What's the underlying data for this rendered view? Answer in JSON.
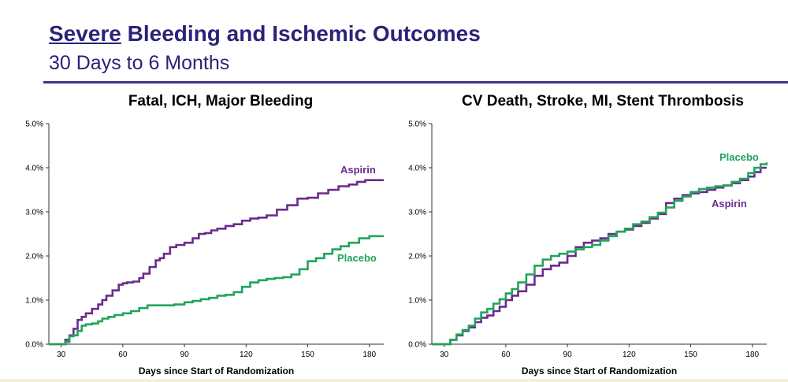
{
  "header": {
    "title_underlined": "Severe",
    "title_rest": " Bleeding and Ischemic Outcomes",
    "subtitle": "30 Days to 6 Months"
  },
  "colors": {
    "aspirin": "#6b2a8c",
    "placebo": "#22a35a",
    "title": "#2a2377"
  },
  "chart_data": [
    {
      "type": "line",
      "title": "Fatal, ICH, Major Bleeding",
      "xlabel": "Days since Start of Randomization",
      "ylabel": "",
      "xlim": [
        24,
        187
      ],
      "ylim": [
        0,
        5.0
      ],
      "xticks": [
        30,
        60,
        90,
        120,
        150,
        180
      ],
      "yticks": [
        "0.0%",
        "1.0%",
        "2.0%",
        "3.0%",
        "4.0%",
        "5.0%"
      ],
      "series": [
        {
          "name": "Aspirin",
          "color": "aspirin",
          "x": [
            24,
            30,
            32,
            34,
            36,
            38,
            40,
            42,
            45,
            48,
            50,
            52,
            55,
            58,
            60,
            62,
            65,
            68,
            70,
            73,
            76,
            78,
            80,
            83,
            86,
            90,
            94,
            97,
            100,
            103,
            106,
            110,
            114,
            118,
            122,
            126,
            130,
            135,
            140,
            145,
            150,
            155,
            160,
            165,
            170,
            174,
            178,
            182,
            187
          ],
          "y": [
            0.0,
            0.0,
            0.1,
            0.2,
            0.35,
            0.55,
            0.62,
            0.7,
            0.8,
            0.9,
            1.0,
            1.1,
            1.22,
            1.35,
            1.38,
            1.4,
            1.42,
            1.5,
            1.6,
            1.75,
            1.9,
            1.95,
            2.05,
            2.2,
            2.25,
            2.3,
            2.4,
            2.5,
            2.52,
            2.58,
            2.62,
            2.68,
            2.72,
            2.8,
            2.85,
            2.87,
            2.92,
            3.05,
            3.15,
            3.3,
            3.32,
            3.42,
            3.5,
            3.58,
            3.62,
            3.68,
            3.72,
            3.72,
            3.72
          ]
        },
        {
          "name": "Placebo",
          "color": "placebo",
          "x": [
            24,
            30,
            32,
            34,
            36,
            38,
            40,
            42,
            45,
            48,
            50,
            53,
            56,
            60,
            64,
            68,
            72,
            76,
            80,
            85,
            90,
            94,
            98,
            102,
            106,
            110,
            114,
            118,
            122,
            126,
            130,
            134,
            138,
            142,
            146,
            150,
            154,
            158,
            162,
            166,
            170,
            175,
            180,
            187
          ],
          "y": [
            0.0,
            0.0,
            0.05,
            0.18,
            0.2,
            0.3,
            0.42,
            0.45,
            0.47,
            0.52,
            0.58,
            0.62,
            0.66,
            0.7,
            0.75,
            0.82,
            0.88,
            0.88,
            0.88,
            0.9,
            0.95,
            0.98,
            1.02,
            1.05,
            1.1,
            1.12,
            1.18,
            1.3,
            1.4,
            1.45,
            1.48,
            1.5,
            1.52,
            1.58,
            1.7,
            1.88,
            1.95,
            2.05,
            2.15,
            2.22,
            2.3,
            2.4,
            2.45,
            2.45
          ]
        }
      ]
    },
    {
      "type": "line",
      "title": "CV Death, Stroke, MI, Stent Thrombosis",
      "xlabel": "Days since Start of Randomization",
      "ylabel": "",
      "xlim": [
        24,
        187
      ],
      "ylim": [
        0,
        5.0
      ],
      "xticks": [
        30,
        60,
        90,
        120,
        150,
        180
      ],
      "yticks": [
        "0.0%",
        "1.0%",
        "2.0%",
        "3.0%",
        "4.0%",
        "5.0%"
      ],
      "series": [
        {
          "name": "Aspirin",
          "color": "aspirin",
          "x": [
            24,
            30,
            33,
            36,
            39,
            42,
            45,
            48,
            51,
            54,
            57,
            60,
            63,
            66,
            70,
            74,
            78,
            82,
            86,
            90,
            94,
            98,
            102,
            106,
            110,
            114,
            118,
            122,
            126,
            130,
            134,
            138,
            142,
            146,
            150,
            154,
            158,
            162,
            166,
            170,
            174,
            178,
            181,
            184,
            187
          ],
          "y": [
            0.0,
            0.0,
            0.1,
            0.2,
            0.3,
            0.38,
            0.5,
            0.6,
            0.65,
            0.75,
            0.85,
            1.0,
            1.1,
            1.2,
            1.35,
            1.55,
            1.7,
            1.78,
            1.85,
            2.0,
            2.2,
            2.3,
            2.35,
            2.4,
            2.5,
            2.55,
            2.6,
            2.68,
            2.75,
            2.85,
            2.95,
            3.2,
            3.3,
            3.38,
            3.42,
            3.45,
            3.5,
            3.55,
            3.6,
            3.65,
            3.72,
            3.8,
            3.9,
            4.0,
            4.0
          ]
        },
        {
          "name": "Placebo",
          "color": "placebo",
          "x": [
            24,
            30,
            33,
            36,
            39,
            42,
            45,
            48,
            51,
            54,
            57,
            60,
            63,
            66,
            70,
            74,
            78,
            82,
            86,
            90,
            94,
            98,
            102,
            106,
            110,
            114,
            118,
            122,
            126,
            130,
            134,
            138,
            142,
            146,
            150,
            154,
            158,
            162,
            166,
            170,
            174,
            178,
            181,
            184,
            187
          ],
          "y": [
            0.0,
            0.0,
            0.1,
            0.22,
            0.32,
            0.42,
            0.58,
            0.72,
            0.8,
            0.92,
            1.02,
            1.15,
            1.25,
            1.4,
            1.58,
            1.78,
            1.92,
            2.0,
            2.05,
            2.1,
            2.15,
            2.2,
            2.25,
            2.35,
            2.45,
            2.55,
            2.62,
            2.72,
            2.78,
            2.88,
            2.98,
            3.1,
            3.25,
            3.35,
            3.45,
            3.52,
            3.55,
            3.58,
            3.6,
            3.68,
            3.75,
            3.88,
            4.0,
            4.08,
            4.12
          ]
        }
      ]
    }
  ]
}
